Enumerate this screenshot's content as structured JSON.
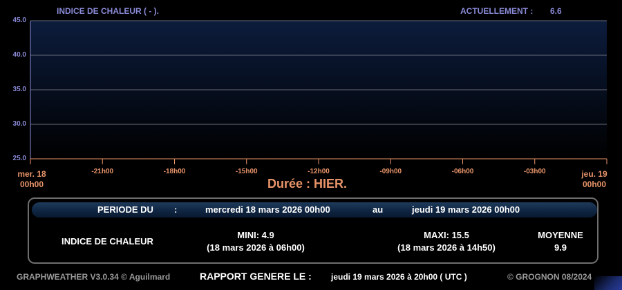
{
  "header": {
    "title": "INDICE DE CHALEUR ( - ).",
    "current_label": "ACTUELLEMENT :",
    "current_value": "6.6"
  },
  "chart_data": {
    "type": "line",
    "title": "INDICE DE CHALEUR ( - ).",
    "ylim": [
      25.0,
      45.0
    ],
    "yticks": [
      "25.0",
      "30.0",
      "35.0",
      "40.0",
      "45.0"
    ],
    "xticks": [
      "-21h00",
      "-18h00",
      "-15h00",
      "-12h00",
      "-09h00",
      "-06h00",
      "-03h00"
    ],
    "x_start": [
      "mer. 18",
      "00h00"
    ],
    "x_end": [
      "jeu. 19",
      "00h00"
    ],
    "grid": true,
    "series": [],
    "colors": {
      "plot_top": "#0c1c3c",
      "plot_bottom": "#000000",
      "grid": "#6a6a7a",
      "axis": "#e8946a"
    }
  },
  "duration": "Durée : HIER.",
  "period": {
    "label": "PERIODE DU",
    "sep": ":",
    "start": "mercredi 18 mars 2026 00h00",
    "to": "au",
    "end": "jeudi 19 mars 2026 00h00"
  },
  "stats": {
    "name": "INDICE DE CHALEUR",
    "min_label": "MINI:  4.9",
    "min_date": "(18 mars 2026 à 06h00)",
    "max_label": "MAXI:  15.5",
    "max_date": "(18 mars 2026 à 14h50)",
    "avg_label": "MOYENNE",
    "avg_value": "9.9"
  },
  "footer": {
    "software": "GRAPHWEATHER V3.0.34 © Aguilmard",
    "report_label": "RAPPORT GENERE LE :",
    "report_date": "jeudi 19 mars 2026 à 20h00 ( UTC )",
    "copyright": "© GROGNON 08/2024"
  }
}
